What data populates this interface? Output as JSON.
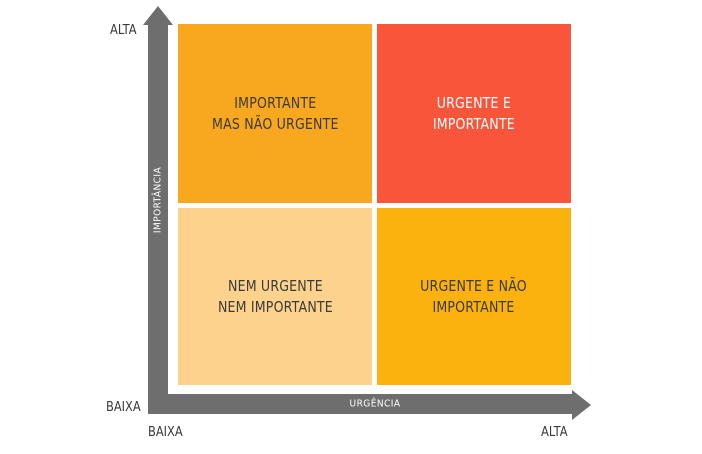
{
  "axes": {
    "y_title": "IMPORTÂNCIA",
    "x_title": "URGÊNCIA",
    "y_high": "ALTA",
    "y_low": "BAIXA",
    "x_low": "BAIXA",
    "x_high": "ALTA",
    "color": "#6e6e6e"
  },
  "quadrants": {
    "top_left": {
      "label": "IMPORTANTE\nMAS NÃO URGENTE",
      "color": "#f8a81e",
      "text_color": "#3a3a3a"
    },
    "top_right": {
      "label": "URGENTE E\nIMPORTANTE",
      "color": "#f9553a",
      "text_color": "#ffffff"
    },
    "bottom_left": {
      "label": "NEM URGENTE\nNEM IMPORTANTE",
      "color": "#fcd28c",
      "text_color": "#3a3a3a"
    },
    "bottom_right": {
      "label": "URGENTE E NÃO\nIMPORTANTE",
      "color": "#fcb20e",
      "text_color": "#3a3a3a"
    }
  }
}
